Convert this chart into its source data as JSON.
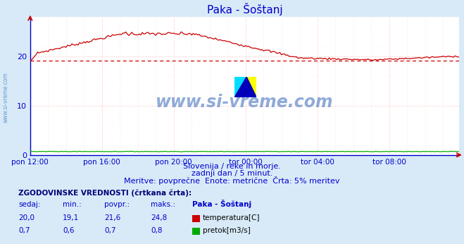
{
  "title": "Paka - Šoštanj",
  "bg_color": "#d8eaf8",
  "plot_bg_color": "#ffffff",
  "grid_color": "#ddaaaa",
  "x_labels": [
    "pon 12:00",
    "pon 16:00",
    "pon 20:00",
    "tor 00:00",
    "tor 04:00",
    "tor 08:00"
  ],
  "x_ticks_idx": [
    0,
    48,
    96,
    144,
    192,
    240
  ],
  "n_points": 288,
  "x_max": 287,
  "y_ticks": [
    0,
    10,
    20
  ],
  "y_max": 28,
  "temp_color": "#cc0000",
  "flow_color": "#00aa00",
  "temp_min": 19.1,
  "temp_current": 20.0,
  "flow_scale": 0.7,
  "subtitle1": "Slovenija / reke in morje.",
  "subtitle2": "zadnji dan / 5 minut.",
  "subtitle3": "Meritve: povprečne  Enote: metrične  Črta: 5% meritev",
  "table_header": "ZGODOVINSKE VREDNOSTI (črtkana črta):",
  "col_headers": [
    "sedaj:",
    "min.:",
    "povpr.:",
    "maks.:",
    "Paka - Šoštanj"
  ],
  "row1_vals": [
    "20,0",
    "19,1",
    "21,6",
    "24,8"
  ],
  "row1_label": "temperatura[C]",
  "row1_color": "#cc0000",
  "row2_vals": [
    "0,7",
    "0,6",
    "0,7",
    "0,8"
  ],
  "row2_label": "pretok[m3/s]",
  "row2_color": "#00aa00",
  "watermark_text": "www.si-vreme.com",
  "watermark_color": "#3366bb",
  "left_label": "www.si-vreme.com",
  "left_label_color": "#6699cc",
  "title_color": "#0000cc",
  "text_color": "#0000cc",
  "axis_color": "#0000cc",
  "arrow_color": "#cc0000"
}
